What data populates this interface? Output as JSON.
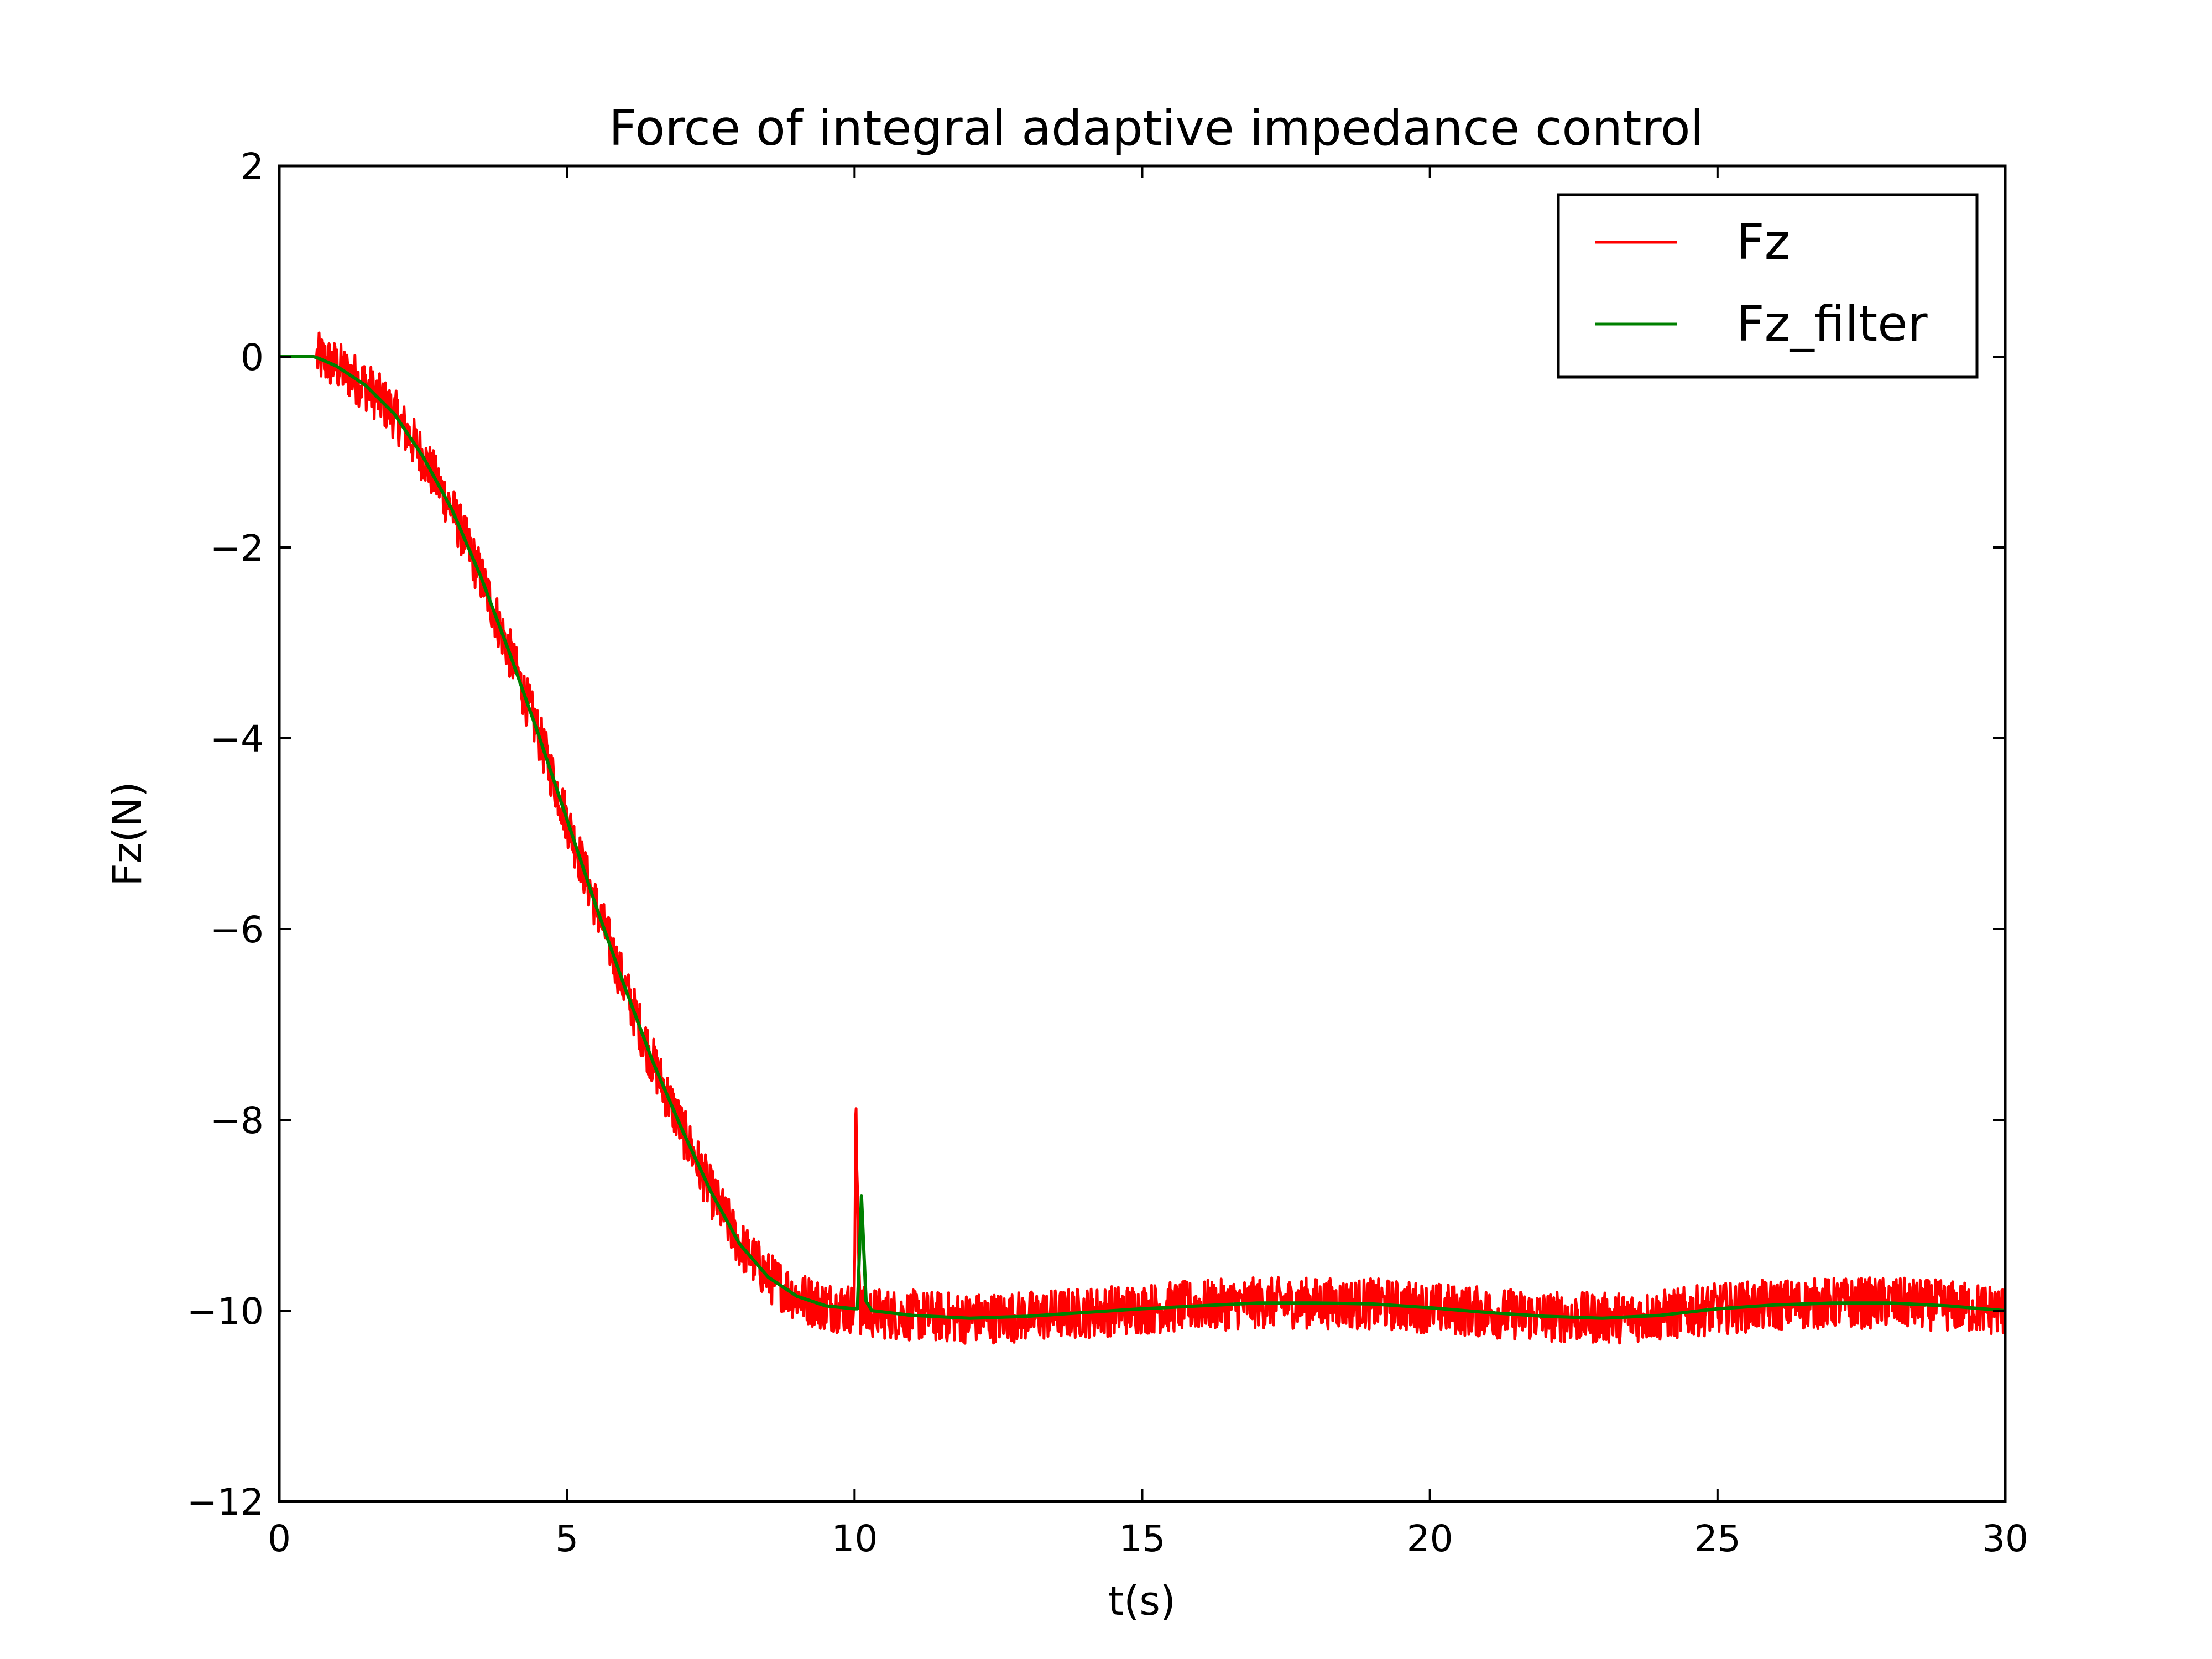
{
  "chart_data": {
    "type": "line",
    "title": "Force of integral adaptive impedance control",
    "xlabel": "t(s)",
    "ylabel": "Fz(N)",
    "xlim": [
      0,
      30
    ],
    "ylim": [
      -12,
      2
    ],
    "xticks": [
      0,
      5,
      10,
      15,
      20,
      25,
      30
    ],
    "yticks": [
      2,
      0,
      -2,
      -4,
      -6,
      -8,
      -10,
      -12
    ],
    "xtick_labels": [
      "0",
      "5",
      "10",
      "15",
      "20",
      "25",
      "30"
    ],
    "ytick_labels": [
      "2",
      "0",
      "−2",
      "−4",
      "−6",
      "−8",
      "−10",
      "−12"
    ],
    "grid": false,
    "legend_position": "top-right",
    "series": [
      {
        "name": "Fz",
        "color": "#ff0000",
        "noise_amplitude": 0.3,
        "x": [
          0,
          0.6,
          0.7,
          1.0,
          1.5,
          2.0,
          2.5,
          3.0,
          3.5,
          4.0,
          4.5,
          5.0,
          5.5,
          6.0,
          6.5,
          7.0,
          7.5,
          8.0,
          8.5,
          9.0,
          9.5,
          10.0,
          10.02,
          10.1,
          10.2,
          11.0,
          12.0,
          13.0,
          14.0,
          15.0,
          16.0,
          17.0,
          18.0,
          19.0,
          20.0,
          21.0,
          22.0,
          23.0,
          24.0,
          25.0,
          26.0,
          27.0,
          28.0,
          29.0,
          30.0
        ],
        "y": [
          0,
          0,
          -0.02,
          -0.1,
          -0.3,
          -0.6,
          -1.05,
          -1.6,
          -2.3,
          -3.1,
          -3.95,
          -4.85,
          -5.75,
          -6.6,
          -7.4,
          -8.1,
          -8.75,
          -9.3,
          -9.65,
          -9.85,
          -9.95,
          -9.98,
          -7.95,
          -10.0,
          -10.02,
          -10.05,
          -10.08,
          -10.06,
          -10.02,
          -9.98,
          -9.95,
          -9.92,
          -9.92,
          -9.93,
          -9.97,
          -10.02,
          -10.06,
          -10.08,
          -10.05,
          -9.98,
          -9.94,
          -9.92,
          -9.92,
          -9.95,
          -10.0
        ]
      },
      {
        "name": "Fz_filter",
        "color": "#008000",
        "x": [
          0,
          0.6,
          0.7,
          1.0,
          1.5,
          2.0,
          2.5,
          3.0,
          3.5,
          4.0,
          4.5,
          5.0,
          5.5,
          6.0,
          6.5,
          7.0,
          7.5,
          8.0,
          8.5,
          9.0,
          9.5,
          10.0,
          10.05,
          10.12,
          10.2,
          10.3,
          11.0,
          12.0,
          13.0,
          14.0,
          15.0,
          16.0,
          17.0,
          18.0,
          19.0,
          20.0,
          21.0,
          22.0,
          23.0,
          24.0,
          25.0,
          26.0,
          27.0,
          28.0,
          29.0,
          30.0
        ],
        "y": [
          0,
          0,
          -0.02,
          -0.1,
          -0.3,
          -0.6,
          -1.05,
          -1.6,
          -2.3,
          -3.1,
          -3.95,
          -4.85,
          -5.75,
          -6.6,
          -7.4,
          -8.1,
          -8.75,
          -9.3,
          -9.65,
          -9.85,
          -9.95,
          -9.98,
          -9.98,
          -8.8,
          -9.9,
          -10.0,
          -10.05,
          -10.08,
          -10.06,
          -10.02,
          -9.98,
          -9.95,
          -9.92,
          -9.92,
          -9.93,
          -9.97,
          -10.02,
          -10.06,
          -10.08,
          -10.05,
          -9.98,
          -9.94,
          -9.92,
          -9.92,
          -9.95,
          -10.0
        ]
      }
    ]
  }
}
